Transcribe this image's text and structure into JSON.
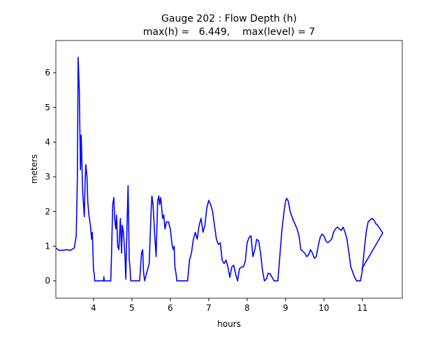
{
  "chart_data": {
    "type": "line",
    "title": "Gauge 202 : Flow Depth (h)",
    "subtitle": "max(h) =   6.449,    max(level) = 7",
    "x_label": "hours",
    "y_label": "meters",
    "xlim": [
      3.02,
      12.04
    ],
    "ylim": [
      -0.5,
      6.93
    ],
    "xticks": [
      4,
      5,
      6,
      7,
      8,
      9,
      10,
      11
    ],
    "yticks": [
      0,
      1,
      2,
      3,
      4,
      5,
      6
    ],
    "x": [
      3.02,
      3.1,
      3.2,
      3.3,
      3.4,
      3.5,
      3.55,
      3.58,
      3.6,
      3.63,
      3.66,
      3.68,
      3.7,
      3.72,
      3.74,
      3.76,
      3.78,
      3.8,
      3.83,
      3.85,
      3.88,
      3.92,
      3.95,
      3.97,
      4.0,
      4.02,
      4.03,
      4.26,
      4.27,
      4.28,
      4.45,
      4.47,
      4.5,
      4.53,
      4.55,
      4.58,
      4.6,
      4.63,
      4.66,
      4.7,
      4.73,
      4.75,
      4.78,
      4.82,
      4.84,
      4.87,
      4.9,
      4.93,
      4.95,
      4.97,
      5.2,
      5.25,
      5.28,
      5.3,
      5.33,
      5.45,
      5.5,
      5.52,
      5.55,
      5.6,
      5.63,
      5.67,
      5.7,
      5.72,
      5.75,
      5.8,
      5.83,
      5.86,
      5.9,
      5.95,
      6.0,
      6.05,
      6.08,
      6.1,
      6.12,
      6.15,
      6.17,
      6.45,
      6.5,
      6.55,
      6.6,
      6.65,
      6.7,
      6.75,
      6.8,
      6.85,
      6.9,
      6.95,
      7.0,
      7.05,
      7.1,
      7.15,
      7.2,
      7.25,
      7.3,
      7.35,
      7.4,
      7.45,
      7.5,
      7.55,
      7.6,
      7.65,
      7.7,
      7.75,
      7.8,
      7.85,
      7.9,
      7.95,
      8.0,
      8.05,
      8.1,
      8.15,
      8.2,
      8.25,
      8.3,
      8.35,
      8.4,
      8.45,
      8.5,
      8.55,
      8.6,
      8.65,
      8.7,
      8.8,
      8.85,
      8.9,
      8.95,
      9.0,
      9.03,
      9.07,
      9.12,
      9.2,
      9.3,
      9.35,
      9.4,
      9.45,
      9.5,
      9.55,
      9.6,
      9.65,
      9.7,
      9.75,
      9.8,
      9.85,
      9.9,
      9.95,
      10.0,
      10.05,
      10.1,
      10.15,
      10.2,
      10.25,
      10.3,
      10.35,
      10.4,
      10.45,
      10.5,
      10.55,
      10.6,
      10.65,
      10.7,
      10.75,
      10.8,
      10.85,
      10.95,
      11.0,
      11.05,
      11.1,
      11.15,
      11.2,
      11.25,
      11.3,
      11.35,
      11.4,
      11.53,
      10.98
    ],
    "series": [
      {
        "color": "#0000ff",
        "values": [
          0.95,
          0.88,
          0.88,
          0.9,
          0.88,
          0.95,
          1.3,
          3.0,
          6.449,
          5.5,
          3.2,
          4.2,
          3.3,
          2.5,
          2.2,
          1.85,
          2.8,
          3.35,
          3.0,
          2.3,
          1.9,
          1.6,
          1.2,
          1.4,
          0.3,
          0.2,
          0,
          0,
          0.12,
          0,
          0,
          0.8,
          2.2,
          2.4,
          1.8,
          1.5,
          1.9,
          1.0,
          0.9,
          1.8,
          0.8,
          1.6,
          1.4,
          0.7,
          0.05,
          1.5,
          2.75,
          0.6,
          0.4,
          0,
          0,
          0.8,
          0.9,
          0.3,
          0,
          0.5,
          2.0,
          2.45,
          2.2,
          1.2,
          0.7,
          2.3,
          2.45,
          2.2,
          2.4,
          1.8,
          1.9,
          1.5,
          1.7,
          1.7,
          1.5,
          1.0,
          0.9,
          1.0,
          0.4,
          0.2,
          0,
          0,
          0.6,
          0.8,
          1.2,
          1.4,
          1.2,
          1.6,
          1.8,
          1.4,
          1.6,
          2.1,
          2.32,
          2.2,
          2.0,
          1.6,
          1.2,
          1.05,
          1.1,
          0.6,
          0.5,
          0.6,
          0.4,
          0.1,
          0.4,
          0.45,
          0.2,
          0,
          0.35,
          0.4,
          0.4,
          0.55,
          1.1,
          1.25,
          1.3,
          0.7,
          0.9,
          1.2,
          1.15,
          0.8,
          0.3,
          0,
          0.05,
          0.22,
          0.2,
          0.1,
          0,
          0,
          0.7,
          1.4,
          1.9,
          2.3,
          2.38,
          2.3,
          2.0,
          1.75,
          1.5,
          1.3,
          0.9,
          0.85,
          0.8,
          0.7,
          0.75,
          0.9,
          0.8,
          0.65,
          0.7,
          1.0,
          1.25,
          1.35,
          1.3,
          1.15,
          1.1,
          1.15,
          1.2,
          1.4,
          1.5,
          1.55,
          1.5,
          1.45,
          1.55,
          1.4,
          1.2,
          0.8,
          0.4,
          0.25,
          0.1,
          0,
          0,
          0.3,
          0.9,
          1.4,
          1.7,
          1.75,
          1.8,
          1.75,
          1.65,
          1.6,
          1.38,
          0.33
        ]
      }
    ]
  }
}
